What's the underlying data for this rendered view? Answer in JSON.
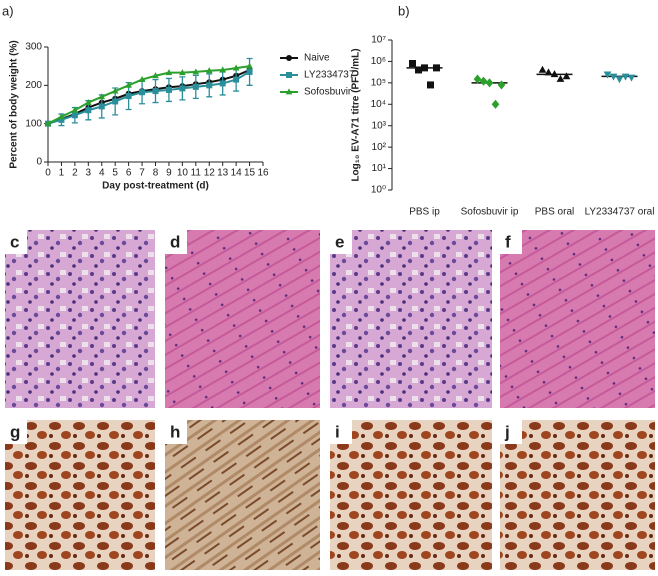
{
  "chart_data": [
    {
      "type": "line",
      "label": "a)",
      "xlabel": "Day post-treatment (d)",
      "ylabel": "Percent of body weight (%)",
      "x": [
        0,
        1,
        2,
        3,
        4,
        5,
        6,
        7,
        8,
        9,
        10,
        11,
        12,
        13,
        14,
        15
      ],
      "xlim": [
        0,
        16
      ],
      "xticks": [
        0,
        1,
        2,
        3,
        4,
        5,
        6,
        7,
        8,
        9,
        10,
        11,
        12,
        13,
        14,
        15,
        16
      ],
      "ylim": [
        0,
        300
      ],
      "yticks": [
        0,
        100,
        200,
        300
      ],
      "legend": "right",
      "series": [
        {
          "name": "Naive",
          "color": "#111111",
          "marker": "circle",
          "values": [
            100,
            112,
            125,
            142,
            155,
            165,
            178,
            185,
            190,
            195,
            198,
            203,
            208,
            215,
            225,
            240
          ]
        },
        {
          "name": "LY2334737",
          "color": "#2a8f9a",
          "marker": "square",
          "values": [
            100,
            110,
            122,
            135,
            145,
            158,
            172,
            182,
            185,
            188,
            192,
            196,
            200,
            205,
            215,
            235
          ],
          "errors": [
            5,
            15,
            20,
            25,
            30,
            35,
            35,
            30,
            30,
            30,
            30,
            30,
            30,
            30,
            30,
            35
          ]
        },
        {
          "name": "Sofosbuvir",
          "color": "#2ca02c",
          "marker": "triangle",
          "values": [
            100,
            118,
            135,
            155,
            170,
            185,
            200,
            215,
            225,
            233,
            233,
            235,
            238,
            240,
            245,
            250
          ]
        }
      ]
    },
    {
      "type": "dot",
      "label": "b)",
      "ylabel": "Log₁₀ EV-A71 titre (PFU/mL)",
      "log_scale": true,
      "ylim": [
        1,
        10000000
      ],
      "yticks": [
        {
          "value": 1,
          "label": "10⁰"
        },
        {
          "value": 10,
          "label": "10¹"
        },
        {
          "value": 100,
          "label": "10²"
        },
        {
          "value": 1000,
          "label": "10³"
        },
        {
          "value": 10000,
          "label": "10⁴"
        },
        {
          "value": 100000,
          "label": "10⁵"
        },
        {
          "value": 1000000,
          "label": "10⁶"
        },
        {
          "value": 10000000,
          "label": "10⁷"
        }
      ],
      "categories": [
        "PBS ip",
        "Sofosbuvir ip",
        "PBS oral",
        "LY2334737 oral"
      ],
      "colors": [
        "#111111",
        "#2ca02c",
        "#111111",
        "#2a8f9a"
      ],
      "markers": [
        "square",
        "diamond",
        "triangle",
        "triangle-down"
      ],
      "values": [
        [
          800000,
          400000,
          500000,
          80000,
          500000
        ],
        [
          150000,
          120000,
          100000,
          10000,
          80000
        ],
        [
          400000,
          300000,
          250000,
          150000,
          200000
        ],
        [
          250000,
          200000,
          150000,
          200000,
          180000
        ]
      ],
      "medians": [
        500000,
        100000,
        250000,
        200000
      ]
    }
  ],
  "images": {
    "labels": [
      "c",
      "d",
      "e",
      "f",
      "g",
      "h",
      "i",
      "j"
    ]
  }
}
